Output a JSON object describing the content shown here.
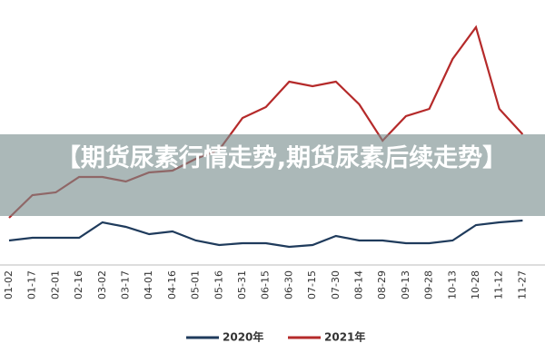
{
  "chart_data": {
    "type": "line",
    "title": "【期货尿素行情走势,期货尿素后续走势】",
    "categories": [
      "01-02",
      "01-17",
      "02-01",
      "02-16",
      "03-02",
      "03-17",
      "04-01",
      "04-16",
      "05-01",
      "05-16",
      "05-31",
      "06-15",
      "06-30",
      "07-15",
      "07-30",
      "08-14",
      "08-29",
      "09-13",
      "09-28",
      "10-13",
      "10-28",
      "11-12",
      "11-27"
    ],
    "series": [
      {
        "name": "2020年",
        "color": "#1f3b5c",
        "values": [
          35,
          38,
          38,
          38,
          55,
          50,
          42,
          45,
          35,
          30,
          32,
          32,
          28,
          30,
          40,
          35,
          35,
          32,
          32,
          35,
          52,
          55,
          57
        ]
      },
      {
        "name": "2021年",
        "color": "#b52a2a",
        "values": [
          60,
          85,
          88,
          105,
          105,
          100,
          110,
          112,
          125,
          135,
          170,
          182,
          210,
          205,
          210,
          185,
          145,
          172,
          180,
          235,
          270,
          180,
          152
        ]
      }
    ]
  }
}
